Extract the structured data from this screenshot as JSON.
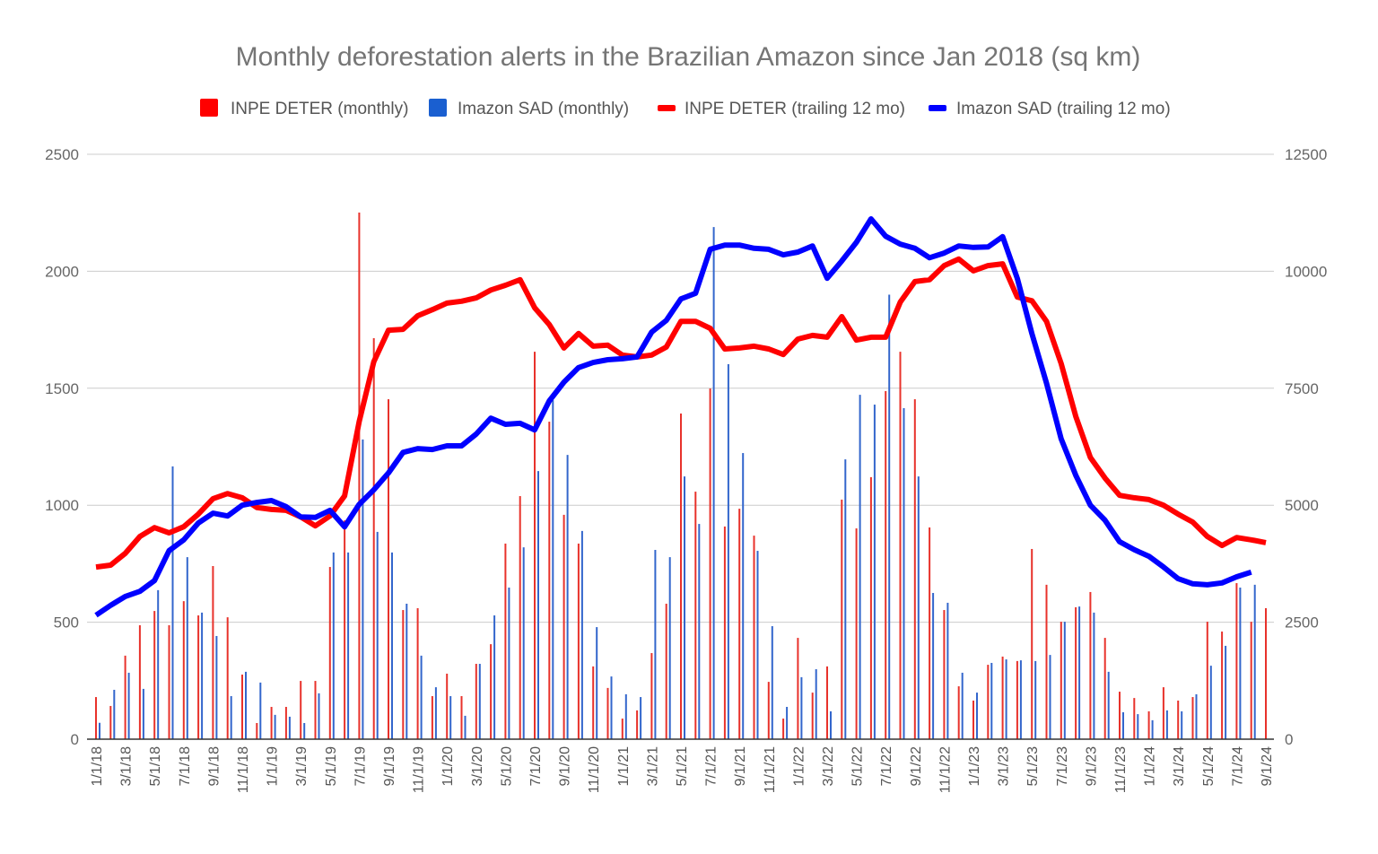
{
  "chart_data": {
    "type": "bar+line",
    "title": "Monthly deforestation alerts in the Brazilian Amazon since Jan 2018 (sq km)",
    "legend_position": "top",
    "grid": true,
    "colors": {
      "deter_monthly": "#e8322b",
      "sad_monthly": "#3366cc",
      "deter_trailing": "#ff0000",
      "sad_trailing": "#0000ff"
    },
    "left_axis": {
      "ylim": [
        0,
        2500
      ],
      "ticks": [
        "0",
        "500",
        "1000",
        "1500",
        "2000",
        "2500"
      ]
    },
    "right_axis": {
      "ylim": [
        0,
        12500
      ],
      "ticks": [
        "0",
        "2500",
        "5000",
        "7500",
        "10000",
        "12500"
      ]
    },
    "x_tick_labels": [
      "1/1/18",
      "3/1/18",
      "5/1/18",
      "7/1/18",
      "9/1/18",
      "11/1/18",
      "1/1/19",
      "3/1/19",
      "5/1/19",
      "7/1/19",
      "9/1/19",
      "11/1/19",
      "1/1/20",
      "3/1/20",
      "5/1/20",
      "7/1/20",
      "9/1/20",
      "11/1/20",
      "1/1/21",
      "3/1/21",
      "5/1/21",
      "7/1/21",
      "9/1/21",
      "11/1/21",
      "1/1/22",
      "3/1/22",
      "5/1/22",
      "7/1/22",
      "9/1/22",
      "11/1/22",
      "1/1/23",
      "3/1/23",
      "5/1/23",
      "7/1/23",
      "9/1/23",
      "11/1/23",
      "1/1/24",
      "3/1/24",
      "5/1/24",
      "7/1/24",
      "9/1/24"
    ],
    "categories": [
      "1/1/18",
      "2/1/18",
      "3/1/18",
      "4/1/18",
      "5/1/18",
      "6/1/18",
      "7/1/18",
      "8/1/18",
      "9/1/18",
      "10/1/18",
      "11/1/18",
      "12/1/18",
      "1/1/19",
      "2/1/19",
      "3/1/19",
      "4/1/19",
      "5/1/19",
      "6/1/19",
      "7/1/19",
      "8/1/19",
      "9/1/19",
      "10/1/19",
      "11/1/19",
      "12/1/19",
      "1/1/20",
      "2/1/20",
      "3/1/20",
      "4/1/20",
      "5/1/20",
      "6/1/20",
      "7/1/20",
      "8/1/20",
      "9/1/20",
      "10/1/20",
      "11/1/20",
      "12/1/20",
      "1/1/21",
      "2/1/21",
      "3/1/21",
      "4/1/21",
      "5/1/21",
      "6/1/21",
      "7/1/21",
      "8/1/21",
      "9/1/21",
      "10/1/21",
      "11/1/21",
      "12/1/21",
      "1/1/22",
      "2/1/22",
      "3/1/22",
      "4/1/22",
      "5/1/22",
      "6/1/22",
      "7/1/22",
      "8/1/22",
      "9/1/22",
      "10/1/22",
      "11/1/22",
      "12/1/22",
      "1/1/23",
      "2/1/23",
      "3/1/23",
      "4/1/23",
      "5/1/23",
      "6/1/23",
      "7/1/23",
      "8/1/23",
      "9/1/23",
      "10/1/23",
      "11/1/23",
      "12/1/23",
      "1/1/24",
      "2/1/24",
      "3/1/24",
      "4/1/24",
      "5/1/24",
      "6/1/24",
      "7/1/24",
      "8/1/24",
      "9/1/24"
    ],
    "series": [
      {
        "name": "INPE DETER (monthly)",
        "type": "bar",
        "axis": "left",
        "values": [
          180,
          142,
          357,
          487,
          548,
          487,
          590,
          529,
          740,
          521,
          276,
          69,
          138,
          138,
          249,
          249,
          736,
          935,
          2251,
          1714,
          1453,
          552,
          560,
          184,
          280,
          184,
          322,
          406,
          836,
          1039,
          1656,
          1357,
          959,
          836,
          311,
          219,
          88,
          123,
          368,
          579,
          1392,
          1058,
          1499,
          909,
          985,
          870,
          245,
          88,
          433,
          199,
          311,
          1024,
          901,
          1120,
          1488,
          1656,
          1453,
          905,
          552,
          226,
          165,
          318,
          353,
          334,
          813,
          660,
          502,
          564,
          629,
          433,
          203,
          176,
          119,
          222,
          165,
          180,
          502,
          460,
          667,
          502,
          560
        ]
      },
      {
        "name": "Imazon SAD (monthly)",
        "type": "bar",
        "axis": "left",
        "values": [
          70,
          211,
          284,
          215,
          637,
          1166,
          778,
          541,
          441,
          184,
          288,
          242,
          104,
          96,
          69,
          196,
          798,
          798,
          1281,
          886,
          798,
          579,
          357,
          222,
          184,
          100,
          322,
          529,
          648,
          820,
          1146,
          1449,
          1215,
          890,
          479,
          268,
          192,
          180,
          809,
          778,
          1123,
          920,
          2189,
          1603,
          1223,
          805,
          483,
          138,
          265,
          299,
          119,
          1196,
          1472,
          1430,
          1900,
          1415,
          1123,
          625,
          583,
          284,
          199,
          326,
          341,
          337,
          334,
          360,
          502,
          567,
          541,
          288,
          115,
          107,
          81,
          123,
          119,
          192,
          314,
          399,
          648,
          660,
          null
        ]
      },
      {
        "name": "INPE DETER (trailing 12 mo)",
        "type": "line",
        "axis": "right",
        "values": [
          3680,
          3720,
          3970,
          4330,
          4520,
          4410,
          4540,
          4810,
          5140,
          5250,
          5160,
          4950,
          4910,
          4890,
          4750,
          4560,
          4770,
          5200,
          6790,
          8070,
          8740,
          8760,
          9050,
          9180,
          9320,
          9360,
          9430,
          9600,
          9700,
          9820,
          9220,
          8860,
          8360,
          8670,
          8400,
          8420,
          8210,
          8170,
          8210,
          8380,
          8930,
          8930,
          8780,
          8340,
          8360,
          8400,
          8340,
          8220,
          8550,
          8630,
          8590,
          9030,
          8530,
          8590,
          8590,
          9340,
          9780,
          9820,
          10120,
          10260,
          10010,
          10120,
          10160,
          9450,
          9370,
          8930,
          8030,
          6900,
          6020,
          5580,
          5210,
          5160,
          5120,
          5000,
          4810,
          4640,
          4330,
          4140,
          4310,
          4260,
          4200
        ]
      },
      {
        "name": "Imazon SAD (trailing 12 mo)",
        "type": "line",
        "axis": "right",
        "values": [
          2650,
          2860,
          3050,
          3160,
          3390,
          4030,
          4260,
          4620,
          4830,
          4770,
          5000,
          5060,
          5100,
          4970,
          4750,
          4740,
          4890,
          4540,
          5020,
          5330,
          5690,
          6130,
          6210,
          6190,
          6270,
          6270,
          6520,
          6860,
          6730,
          6750,
          6610,
          7230,
          7630,
          7940,
          8050,
          8110,
          8130,
          8170,
          8700,
          8950,
          9410,
          9530,
          10470,
          10560,
          10560,
          10490,
          10470,
          10350,
          10410,
          10540,
          9850,
          10220,
          10620,
          11120,
          10750,
          10580,
          10490,
          10290,
          10390,
          10540,
          10510,
          10520,
          10740,
          9850,
          8670,
          7610,
          6420,
          5640,
          5000,
          4680,
          4220,
          4050,
          3910,
          3680,
          3430,
          3320,
          3300,
          3340,
          3470,
          3570,
          null
        ]
      }
    ]
  }
}
